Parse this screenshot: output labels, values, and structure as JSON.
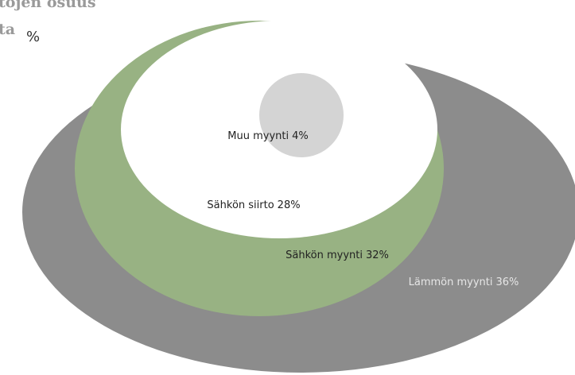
{
  "chart_data": {
    "type": "ellipse",
    "title_lines": [
      "tojen osuus",
      "ta"
    ],
    "unit": "%",
    "categories": [
      "Lämmön myynti",
      "Sähkön myynti",
      "Sähkön siirto",
      "Muu myynti"
    ],
    "values": [
      36,
      32,
      28,
      4
    ],
    "value_labels": [
      "36%",
      "32%",
      "28%",
      "4%"
    ],
    "colors": [
      "#8c8c8c",
      "#98b283",
      "#ffffff",
      "#d4d4d4"
    ],
    "label_colors": [
      "#e6e6e6",
      "#222222",
      "#222222",
      "#222222"
    ]
  }
}
